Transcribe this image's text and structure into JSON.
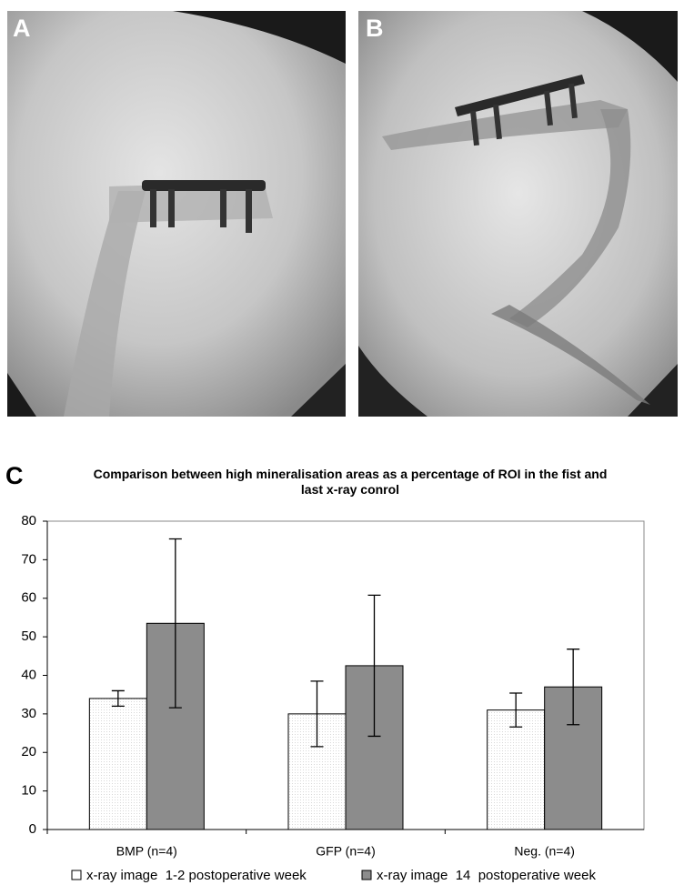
{
  "panel_labels": [
    "A",
    "B",
    "C"
  ],
  "chart_data": {
    "type": "bar",
    "title": "Comparison between high mineralisation areas as a percentage of ROI in the fist and last x-ray conrol",
    "categories": [
      "BMP (n=4)",
      "GFP (n=4)",
      "Neg. (n=4)"
    ],
    "series": [
      {
        "name": "x-ray image  1-2 postoperative week",
        "color": "#ffffff",
        "values": [
          34,
          30,
          31
        ],
        "errors": [
          2,
          8.5,
          4.4
        ]
      },
      {
        "name": "x-ray image  14  postoperative week",
        "color": "#8c8c8c",
        "values": [
          53.5,
          42.5,
          37
        ],
        "errors": [
          21.9,
          18.3,
          9.8
        ]
      }
    ],
    "ylim": [
      0,
      80
    ],
    "yticks": [
      0,
      10,
      20,
      30,
      40,
      50,
      60,
      70,
      80
    ],
    "legend": "bottom"
  }
}
